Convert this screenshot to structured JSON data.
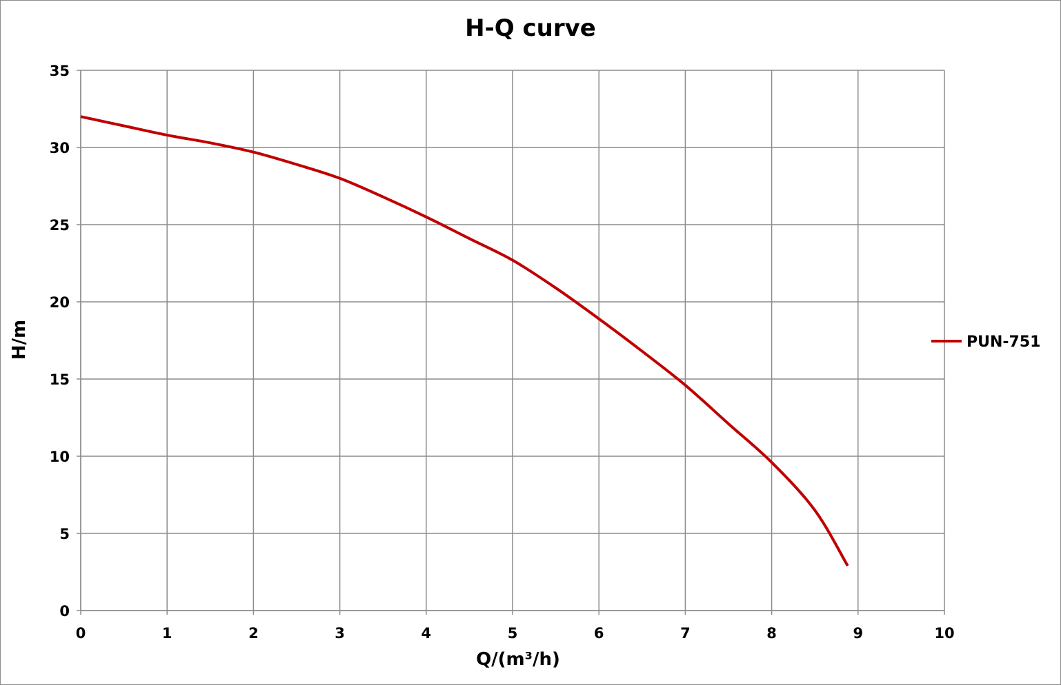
{
  "chart_data": {
    "type": "line",
    "title": "H-Q  curve",
    "xlabel": "Q/(m³/h)",
    "ylabel": "H/m",
    "xlim": [
      0,
      10
    ],
    "ylim": [
      0,
      35
    ],
    "x_ticks": [
      "0",
      "1",
      "2",
      "3",
      "4",
      "5",
      "6",
      "7",
      "8",
      "9",
      "10"
    ],
    "y_ticks": [
      "0",
      "5",
      "10",
      "15",
      "20",
      "25",
      "30",
      "35"
    ],
    "grid": true,
    "legend_position": "right",
    "series": [
      {
        "name": "PUN-751",
        "color": "#c00000",
        "x": [
          0,
          0.5,
          1,
          1.5,
          2,
          2.5,
          3,
          3.5,
          4,
          4.5,
          5,
          5.5,
          6,
          6.5,
          7,
          7.5,
          8,
          8.5,
          8.88
        ],
        "y": [
          32.0,
          31.4,
          30.8,
          30.3,
          29.7,
          28.9,
          28.0,
          26.8,
          25.5,
          24.1,
          22.7,
          20.9,
          18.9,
          16.8,
          14.6,
          12.1,
          9.6,
          6.5,
          2.9
        ]
      }
    ]
  }
}
